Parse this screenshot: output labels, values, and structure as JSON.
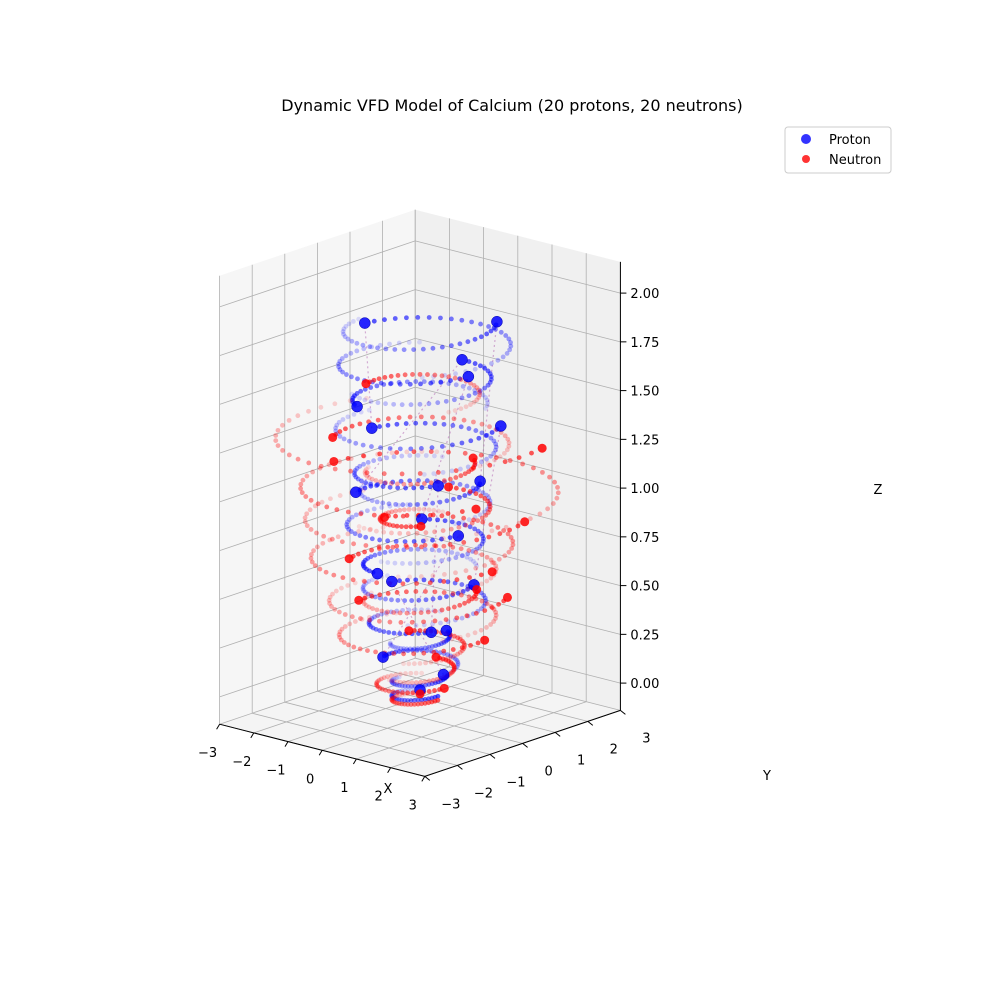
{
  "chart_data": {
    "type": "scatter",
    "projection": "3d",
    "title": "Dynamic VFD Model of Calcium (20 protons, 20 neutrons)",
    "xlabel": "X",
    "ylabel": "Y",
    "zlabel": "Z",
    "xlim": [
      -3,
      3
    ],
    "ylim": [
      -3,
      3
    ],
    "zlim": [
      0,
      2
    ],
    "x_ticks": [
      "−3",
      "−2",
      "−1",
      "0",
      "1",
      "2",
      "3"
    ],
    "y_ticks": [
      "−3",
      "−2",
      "−1",
      "0",
      "1",
      "2",
      "3"
    ],
    "z_ticks": [
      "0.00",
      "0.25",
      "0.50",
      "0.75",
      "1.00",
      "1.25",
      "1.50",
      "1.75",
      "2.00"
    ],
    "grid": true,
    "legend_position": "top-right",
    "series": [
      {
        "name": "Proton",
        "color": "#0000ff",
        "nucleons": [
          {
            "x": 0.0,
            "y": 0.0,
            "z": 0.0
          },
          {
            "x": 0.4,
            "y": 0.3,
            "z": 0.08
          },
          {
            "x": -0.7,
            "y": -0.4,
            "z": 0.16
          },
          {
            "x": 0.2,
            "y": 0.6,
            "z": 0.28
          },
          {
            "x": 0.9,
            "y": -0.6,
            "z": 0.37
          },
          {
            "x": -1.3,
            "y": 0.5,
            "z": 0.47
          },
          {
            "x": 1.1,
            "y": 0.5,
            "z": 0.56
          },
          {
            "x": -0.1,
            "y": -1.2,
            "z": 0.66
          },
          {
            "x": -0.9,
            "y": 1.0,
            "z": 0.78
          },
          {
            "x": 1.5,
            "y": -0.4,
            "z": 0.88
          },
          {
            "x": -1.4,
            "y": -0.5,
            "z": 0.98
          },
          {
            "x": 0.9,
            "y": 0.9,
            "z": 1.06
          },
          {
            "x": 1.2,
            "y": -0.7,
            "z": 1.14
          },
          {
            "x": -1.6,
            "y": 0.2,
            "z": 1.26
          },
          {
            "x": 1.6,
            "y": 0.8,
            "z": 1.38
          },
          {
            "x": -0.6,
            "y": -1.3,
            "z": 1.5
          },
          {
            "x": -0.2,
            "y": 1.5,
            "z": 1.6
          },
          {
            "x": 1.7,
            "y": -0.3,
            "z": 1.7
          },
          {
            "x": -1.9,
            "y": 0.3,
            "z": 1.78
          },
          {
            "x": 1.2,
            "y": 1.1,
            "z": 1.88
          }
        ]
      },
      {
        "name": "Neutron",
        "color": "#ff0000",
        "nucleons": [
          {
            "x": 0.0,
            "y": 0.0,
            "z": -0.02
          },
          {
            "x": 0.9,
            "y": -0.2,
            "z": 0.06
          },
          {
            "x": -0.2,
            "y": 0.7,
            "z": 0.12
          },
          {
            "x": -0.8,
            "y": 0.5,
            "z": 0.24
          },
          {
            "x": 1.7,
            "y": 0.2,
            "z": 0.32
          },
          {
            "x": -1.6,
            "y": -0.2,
            "z": 0.4
          },
          {
            "x": 0.8,
            "y": 0.9,
            "z": 0.5
          },
          {
            "x": 1.7,
            "y": 0.9,
            "z": 0.5
          },
          {
            "x": -1.5,
            "y": -0.6,
            "z": 0.64
          },
          {
            "x": 2.3,
            "y": -0.2,
            "z": 0.72
          },
          {
            "x": -1.8,
            "y": 0.8,
            "z": 0.76
          },
          {
            "x": 0.6,
            "y": -0.6,
            "z": 0.9
          },
          {
            "x": 2.3,
            "y": 0.8,
            "z": 0.92
          },
          {
            "x": -0.5,
            "y": 1.4,
            "z": 0.94
          },
          {
            "x": -2.9,
            "y": 0.4,
            "z": 1.02
          },
          {
            "x": 2.4,
            "y": -0.8,
            "z": 1.08
          },
          {
            "x": 0.6,
            "y": 1.0,
            "z": 1.16
          },
          {
            "x": -1.6,
            "y": -1.0,
            "z": 1.28
          },
          {
            "x": 3.0,
            "y": 0.6,
            "z": 1.34
          },
          {
            "x": -1.2,
            "y": -0.4,
            "z": 1.54
          }
        ]
      }
    ]
  }
}
